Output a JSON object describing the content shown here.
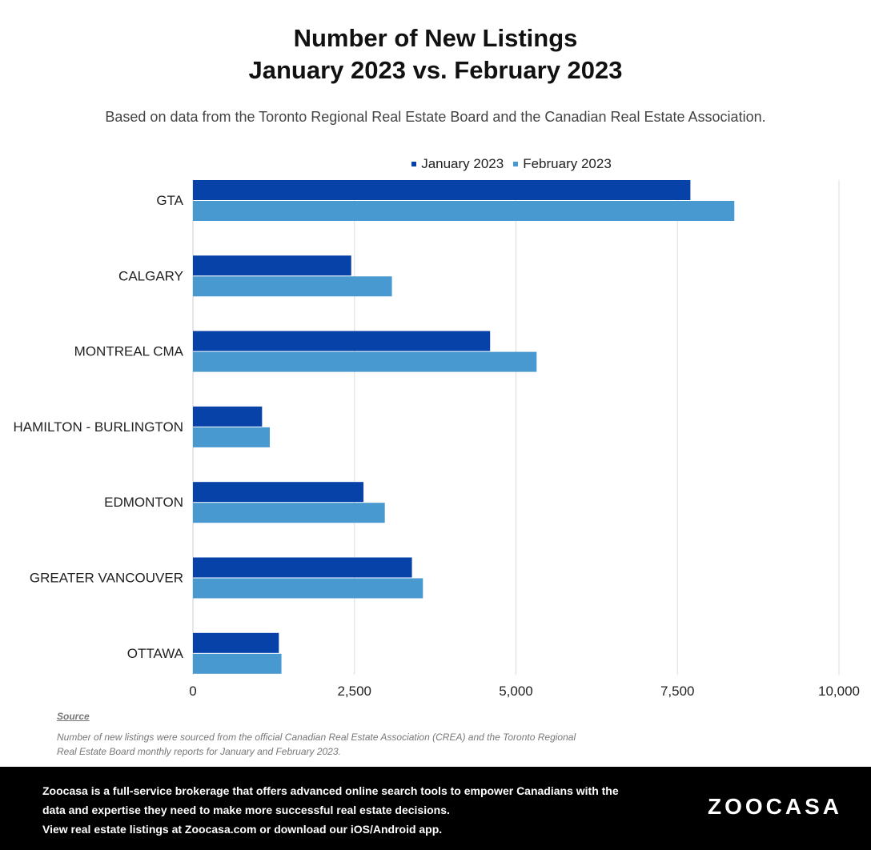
{
  "title_line1": "Number of New Listings",
  "title_line2": "January 2023 vs. February 2023",
  "subtitle": "Based on data from the Toronto Regional Real Estate Board and the Canadian Real Estate Association.",
  "colors": {
    "january": "#0742a8",
    "february": "#4899cf",
    "grid": "#dddddd"
  },
  "chart_data": {
    "type": "bar",
    "orientation": "horizontal",
    "categories": [
      "GTA",
      "CALGARY",
      "MONTREAL CMA",
      "HAMILTON - BURLINGTON",
      "EDMONTON",
      "GREATER VANCOUVER",
      "OTTAWA"
    ],
    "series": [
      {
        "name": "January 2023",
        "values": [
          7700,
          2450,
          4600,
          1070,
          2640,
          3390,
          1330
        ]
      },
      {
        "name": "February 2023",
        "values": [
          8380,
          3080,
          5320,
          1190,
          2970,
          3560,
          1370
        ]
      }
    ],
    "xlim": [
      0,
      10000
    ],
    "xticks": [
      "0",
      "2,500",
      "5,000",
      "7,500",
      "10,000"
    ],
    "xtick_values": [
      0,
      2500,
      5000,
      7500,
      10000
    ],
    "grid": true,
    "legend_position": "top"
  },
  "notes": {
    "source_label": "Source",
    "line1": "Number of new listings were sourced from the official Canadian Real Estate Association (CREA) and the Toronto Regional",
    "line2": "Real Estate Board monthly reports for January and February 2023."
  },
  "footer": {
    "line1": "Zoocasa is a full-service brokerage that offers advanced online search tools to empower Canadians with the",
    "line2": "data and expertise they need to make more successful real estate decisions.",
    "line3": "View real estate listings at Zoocasa.com or download our iOS/Android app.",
    "logo": "ZOOCASA"
  }
}
